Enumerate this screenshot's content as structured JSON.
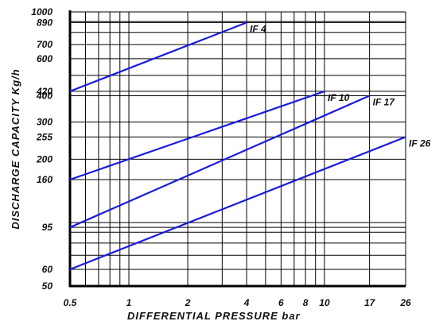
{
  "chart_data": {
    "type": "line",
    "xlabel": "DIFFERENTIAL PRESSURE",
    "xunit": "bar",
    "ylabel": "DISCHARGE CAPACITY",
    "yunit": "Kg/h",
    "x_scale": "log",
    "y_scale": "log",
    "xlim": [
      0.5,
      26
    ],
    "ylim": [
      50,
      1000
    ],
    "x_ticks": [
      "0.5",
      "1",
      "2",
      "4",
      "6",
      "8",
      "10",
      "17",
      "26"
    ],
    "x_tick_values": [
      0.5,
      1,
      2,
      4,
      6,
      8,
      10,
      17,
      26
    ],
    "y_ticks": [
      "1000",
      "890",
      "700",
      "600",
      "420",
      "400",
      "300",
      "255",
      "200",
      "160",
      "95",
      "60",
      "50"
    ],
    "y_tick_values": [
      1000,
      890,
      700,
      600,
      420,
      400,
      300,
      255,
      200,
      160,
      95,
      60,
      50
    ],
    "x_grid": [
      0.5,
      0.6,
      0.7,
      0.8,
      0.9,
      1,
      2,
      3,
      4,
      5,
      6,
      7,
      8,
      9,
      10,
      17,
      26
    ],
    "y_grid": [
      50,
      60,
      70,
      80,
      90,
      95,
      100,
      160,
      200,
      255,
      300,
      400,
      420,
      500,
      600,
      700,
      800,
      890,
      900,
      1000
    ],
    "grid": true,
    "series": [
      {
        "name": "IF 4",
        "x": [
          0.5,
          4
        ],
        "y": [
          420,
          890
        ]
      },
      {
        "name": "IF 10",
        "x": [
          0.5,
          10
        ],
        "y": [
          160,
          420
        ]
      },
      {
        "name": "IF 17",
        "x": [
          0.5,
          17
        ],
        "y": [
          95,
          400
        ]
      },
      {
        "name": "IF 26",
        "x": [
          0.5,
          26
        ],
        "y": [
          60,
          255
        ]
      }
    ],
    "line_color": "#1a1adf"
  }
}
